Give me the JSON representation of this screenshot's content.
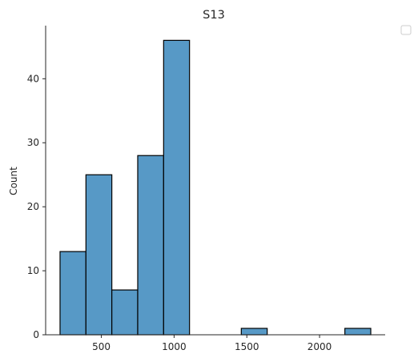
{
  "chart_data": {
    "type": "bar",
    "title": "S13",
    "xlabel": "",
    "ylabel": "Count",
    "bins": [
      {
        "x0": 216,
        "x1": 394,
        "count": 13
      },
      {
        "x0": 394,
        "x1": 572,
        "count": 25
      },
      {
        "x0": 572,
        "x1": 750,
        "count": 7
      },
      {
        "x0": 750,
        "x1": 928,
        "count": 28
      },
      {
        "x0": 928,
        "x1": 1106,
        "count": 46
      },
      {
        "x0": 1106,
        "x1": 1284,
        "count": 0
      },
      {
        "x0": 1284,
        "x1": 1462,
        "count": 0
      },
      {
        "x0": 1462,
        "x1": 1640,
        "count": 1
      },
      {
        "x0": 1640,
        "x1": 1818,
        "count": 0
      },
      {
        "x0": 1818,
        "x1": 1996,
        "count": 0
      },
      {
        "x0": 1996,
        "x1": 2174,
        "count": 0
      },
      {
        "x0": 2174,
        "x1": 2352,
        "count": 1
      }
    ],
    "xticks": [
      500,
      1000,
      1500,
      2000
    ],
    "yticks": [
      0,
      10,
      20,
      30,
      40
    ],
    "xlim": [
      117,
      2451
    ],
    "ylim": [
      0,
      48.3
    ],
    "grid": false,
    "legend": "top-right, empty",
    "bar_color": "#5799c6",
    "edge_color": "#000000"
  }
}
